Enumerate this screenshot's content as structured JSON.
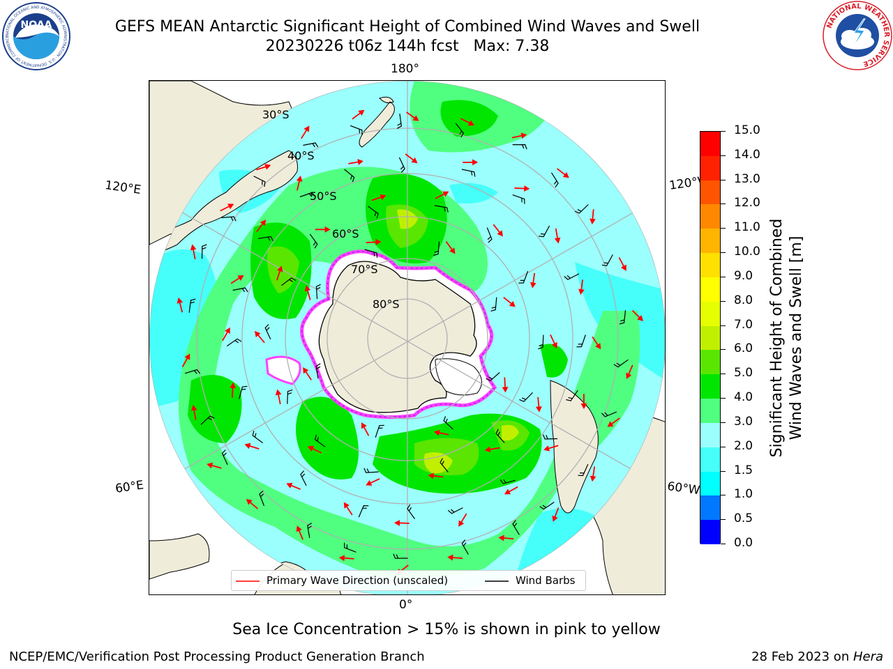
{
  "header": {
    "title_line1": "GEFS MEAN Antarctic Significant Height of Combined Wind Waves and Swell",
    "title_line2": "20230226 t06z 144h fcst   Max: 7.38"
  },
  "logos": {
    "left": "NOAA",
    "left_ring": "NATIONAL OCEANIC AND ATMOSPHERIC ADMINISTRATION · U.S. DEPARTMENT OF COMMERCE",
    "right_ring": "NATIONAL WEATHER SERVICE"
  },
  "map": {
    "projection": "south-polar-stereographic",
    "lon_labels": {
      "top": "180°",
      "bottom": "0°",
      "upper_left": "120°E",
      "upper_right": "120°W",
      "lower_left": "60°E",
      "lower_right": "60°W"
    },
    "lat_labels": [
      "30°S",
      "40°S",
      "50°S",
      "60°S",
      "70°S",
      "80°S"
    ],
    "colors": {
      "land": "#efecda",
      "ocean_base": "#9bfffd",
      "coast": "#000000",
      "grid": "#b0b0b0",
      "ice": "#ffffff",
      "ice_edge": "#ff40ff",
      "arrow": "#ff0000",
      "barb": "#000000"
    }
  },
  "legend": {
    "items": [
      {
        "label": "Primary Wave Direction (unscaled)",
        "color": "#ff0000"
      },
      {
        "label": "Wind Barbs",
        "color": "#000000"
      }
    ]
  },
  "colorbar": {
    "title_line1": "Significant Height of Combined",
    "title_line2": "Wind Waves and Swell [m]",
    "ticks": [
      "0.0",
      "0.5",
      "1.0",
      "1.5",
      "2.0",
      "3.0",
      "4.0",
      "5.0",
      "6.0",
      "7.0",
      "8.0",
      "9.0",
      "10.0",
      "11.0",
      "12.0",
      "13.0",
      "14.0",
      "15.0"
    ],
    "colors": [
      "#0000ff",
      "#0078ff",
      "#00ffff",
      "#46fffa",
      "#9bfffd",
      "#50ff80",
      "#00e600",
      "#5ae600",
      "#c0f000",
      "#e6ff00",
      "#ffff00",
      "#ffe000",
      "#ffb400",
      "#ff8800",
      "#ff5500",
      "#ff2200",
      "#ff0000"
    ]
  },
  "footer": {
    "note": "Sea Ice Concentration > 15% is shown in pink to yellow",
    "left": "NCEP/EMC/Verification Post Processing Product Generation Branch",
    "right_prefix": "28 Feb 2023 on ",
    "right_host": "Hera"
  }
}
